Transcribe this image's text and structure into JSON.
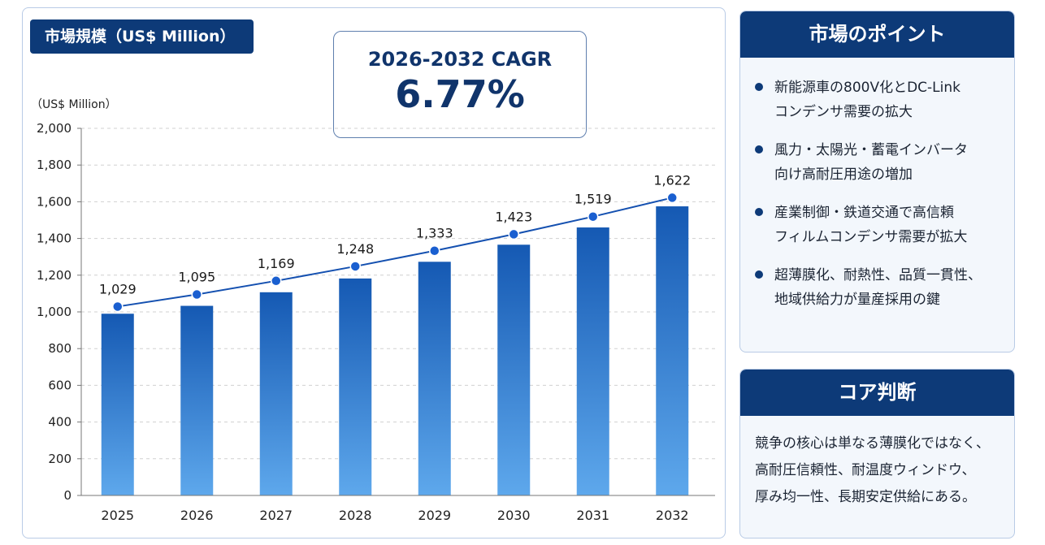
{
  "chart_panel": {
    "title": "市場規模（US$ Million）",
    "cagr_label": "2026-2032 CAGR",
    "cagr_value": "6.77%",
    "y_unit": "（US$ Million）"
  },
  "chart_data": {
    "type": "bar",
    "title": "市場規模（US$ Million）",
    "ylabel": "（US$ Million）",
    "xlabel": "",
    "categories": [
      "2025",
      "2026",
      "2027",
      "2028",
      "2029",
      "2030",
      "2031",
      "2032"
    ],
    "bar_values": [
      990,
      1033,
      1107,
      1182,
      1273,
      1366,
      1460,
      1575
    ],
    "line_values": [
      1029,
      1095,
      1169,
      1248,
      1333,
      1423,
      1519,
      1622
    ],
    "data_labels": [
      "1,029",
      "1,095",
      "1,169",
      "1,248",
      "1,333",
      "1,423",
      "1,519",
      "1,622"
    ],
    "y_ticks": [
      "0",
      "200",
      "400",
      "600",
      "800",
      "1,000",
      "1,200",
      "1,400",
      "1,600",
      "1,800",
      "2,000"
    ],
    "ylim": [
      0,
      2000
    ],
    "grid": true,
    "colors": {
      "bar_top": "#1559b3",
      "bar_bottom": "#5ea8ec",
      "line": "#1450b0",
      "marker": "#1a5fd0"
    }
  },
  "market_points": {
    "title": "市場のポイント",
    "items": [
      {
        "line1": "新能源車の800V化とDC-Link",
        "line2": "コンデンサ需要の拡大"
      },
      {
        "line1": "風力・太陽光・蓄電インバータ",
        "line2": "向け高耐圧用途の増加"
      },
      {
        "line1": "産業制御・鉄道交通で高信頼",
        "line2": "フィルムコンデンサ需要が拡大"
      },
      {
        "line1": "超薄膜化、耐熱性、品質一貫性、",
        "line2": "地域供給力が量産採用の鍵"
      }
    ]
  },
  "core_judgment": {
    "title": "コア判断",
    "lines": [
      "競争の核心は単なる薄膜化ではなく、",
      "高耐圧信頼性、耐温度ウィンドウ、",
      "厚み均一性、長期安定供給にある。"
    ]
  },
  "colors": {
    "navy": "#0d3a78",
    "panel_border": "#b9cbe6",
    "panel_bg": "#f3f7fc"
  }
}
